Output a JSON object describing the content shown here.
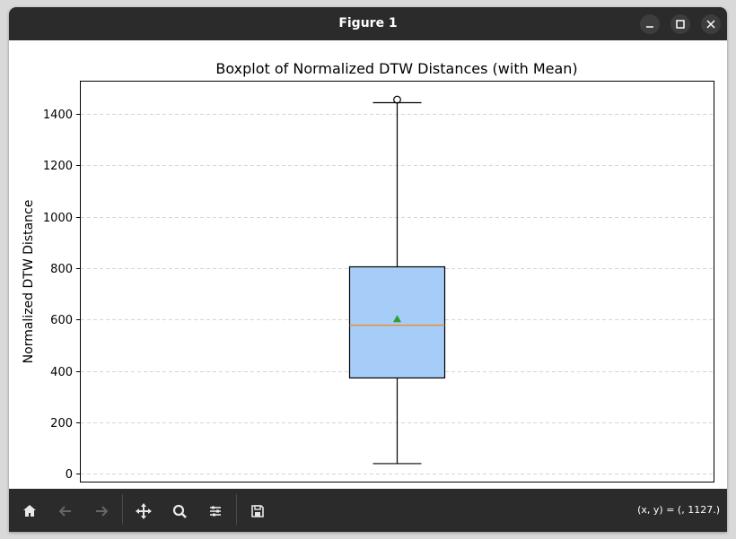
{
  "window": {
    "title": "Figure 1"
  },
  "chart_data": {
    "type": "boxplot",
    "title": "Boxplot of Normalized DTW Distances (with Mean)",
    "xlabel": "",
    "ylabel": "Normalized DTW Distance",
    "ylim": [
      -30,
      1525
    ],
    "yticks": [
      0,
      200,
      400,
      600,
      800,
      1000,
      1200,
      1400
    ],
    "ytick_labels": [
      "0",
      "200",
      "400",
      "600",
      "800",
      "1000",
      "1200",
      "1400"
    ],
    "grid": "y-dashed",
    "box": {
      "whisker_low": 40,
      "q1": 373,
      "median": 578,
      "q3": 805,
      "whisker_high": 1443,
      "mean": 600,
      "outliers": [
        1455
      ]
    },
    "colors": {
      "box_fill": "#a6cdf8",
      "median": "#ff7f0e",
      "mean_marker": "#2ca02c",
      "grid": "#c8c8c8"
    }
  },
  "toolbar": {
    "coords_text": "(x, y) = (, 1127.)",
    "buttons": [
      "home-icon",
      "back-icon",
      "forward-icon",
      "pan-icon",
      "zoom-icon",
      "configure-icon",
      "save-icon"
    ]
  }
}
